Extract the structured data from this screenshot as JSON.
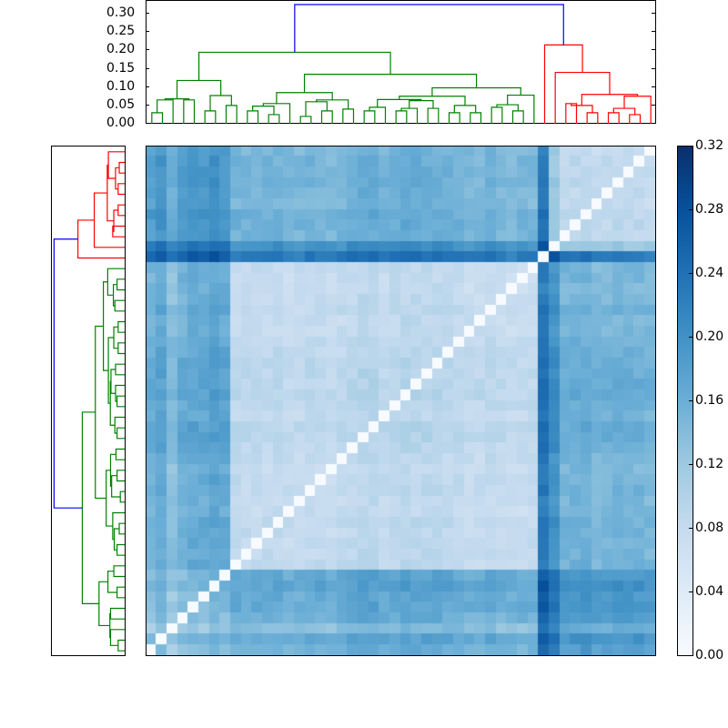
{
  "chart_data": {
    "type": "heatmap",
    "title": "",
    "description": "Clustered distance heatmap with row and column dendrograms",
    "n": 48,
    "colormap": "Blues",
    "vmin": 0.0,
    "vmax": 0.32,
    "colorbar": {
      "ticks": [
        "0.00",
        "0.04",
        "0.08",
        "0.12",
        "0.16",
        "0.20",
        "0.24",
        "0.28",
        "0.32"
      ],
      "values": [
        0.0,
        0.04,
        0.08,
        0.12,
        0.16,
        0.2,
        0.24,
        0.28,
        0.32
      ]
    },
    "top_dendrogram": {
      "ylabel": "",
      "yticks": [
        "0.00",
        "0.05",
        "0.10",
        "0.15",
        "0.20",
        "0.25",
        "0.30"
      ],
      "yvalues": [
        0.0,
        0.05,
        0.1,
        0.15,
        0.2,
        0.25,
        0.3
      ],
      "ylim": [
        0.0,
        0.335
      ],
      "root_height": 0.325,
      "clusters": [
        {
          "name": "green",
          "color": "#008000",
          "leaves": 37,
          "height": 0.195
        },
        {
          "name": "red",
          "color": "#ff0000",
          "leaves": 11,
          "height": 0.215
        }
      ],
      "link_color_above_threshold": "#0000ff"
    },
    "left_dendrogram": {
      "clusters": [
        {
          "name": "red",
          "color": "#ff0000",
          "leaves": 11,
          "position": "top"
        },
        {
          "name": "green",
          "color": "#008000",
          "leaves": 37,
          "position": "bottom"
        }
      ]
    },
    "highlight": {
      "dark_column_index": 37,
      "dark_row_index": 10,
      "note": "Row/column 37 (from left) / 10 (from top) shows the largest distances (~0.28-0.32)"
    },
    "matrix_rows_top_to_bottom": []
  },
  "colors": {
    "green": "#008000",
    "red": "#ff0000",
    "blue": "#0000ff",
    "frame": "#000000"
  }
}
